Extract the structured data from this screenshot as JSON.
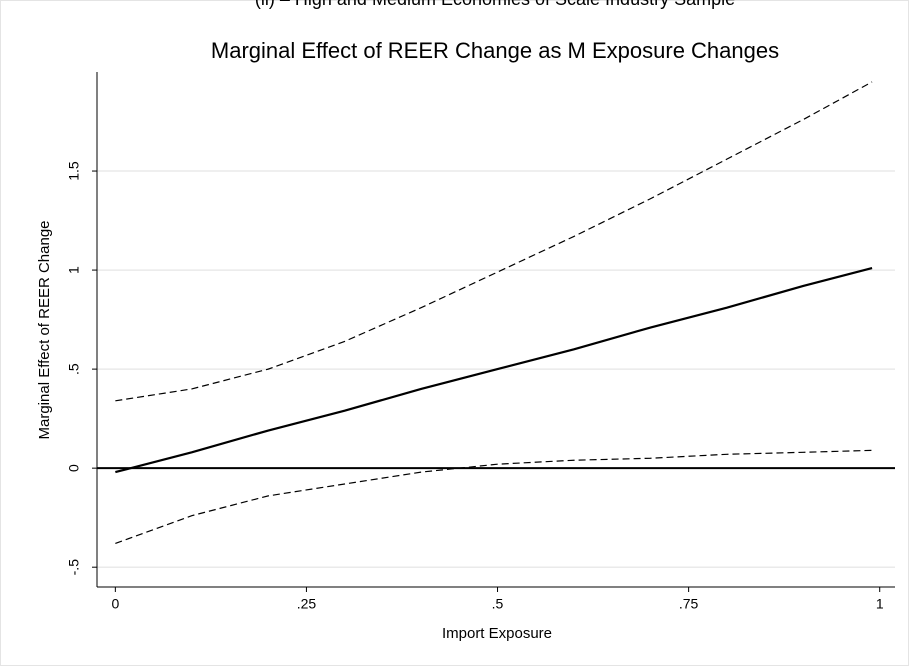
{
  "chart_data": {
    "type": "line",
    "suptitle": "(ii) – High and Medium Economies of Scale Industry Sample",
    "title": "Marginal Effect of REER Change as M Exposure Changes",
    "x_label": "Import Exposure",
    "y_label": "Marginal Effect of REER Change",
    "x": [
      0,
      0.1,
      0.2,
      0.3,
      0.4,
      0.5,
      0.6,
      0.7,
      0.8,
      0.9,
      0.99
    ],
    "series": [
      {
        "color": "#000000",
        "dash": false,
        "values": [
          -0.02,
          0.08,
          0.19,
          0.29,
          0.4,
          0.5,
          0.6,
          0.71,
          0.81,
          0.92,
          1.01
        ]
      },
      {
        "color": "#000000",
        "dash": true,
        "values": [
          0.34,
          0.4,
          0.5,
          0.64,
          0.81,
          0.99,
          1.17,
          1.36,
          1.56,
          1.76,
          1.95
        ]
      },
      {
        "color": "#000000",
        "dash": true,
        "values": [
          -0.38,
          -0.24,
          -0.14,
          -0.08,
          -0.02,
          0.02,
          0.04,
          0.05,
          0.07,
          0.08,
          0.09
        ]
      }
    ],
    "xlim": [
      -0.024,
      1.02
    ],
    "ylim": [
      -0.6,
      2.0
    ],
    "xticks": [
      0,
      {
        "value": 0.25,
        "label": ".25"
      },
      {
        "value": 0.5,
        "label": ".5"
      },
      {
        "value": 0.75,
        "label": ".75"
      },
      1
    ],
    "yticks": [
      {
        "value": -0.5,
        "label": "-.5"
      },
      0,
      {
        "value": 0.5,
        "label": ".5"
      },
      1,
      1.5
    ],
    "reference_line": 0,
    "grid": true
  }
}
